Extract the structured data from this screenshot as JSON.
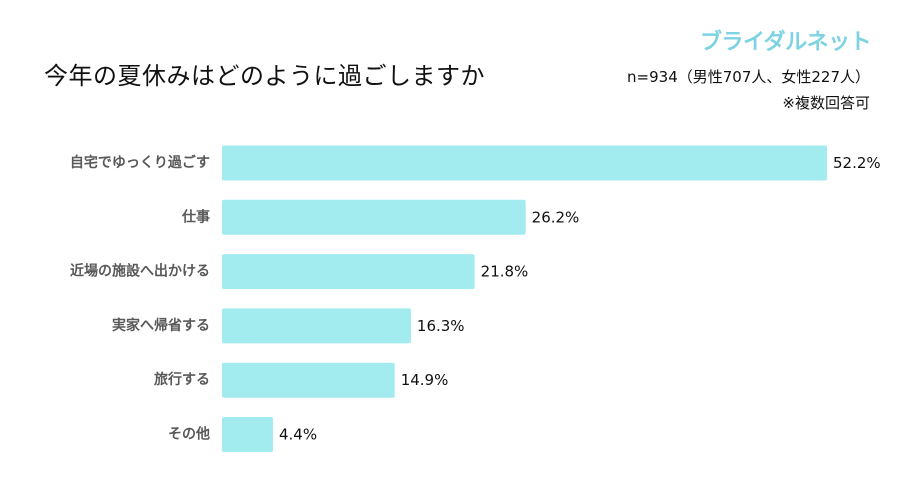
{
  "header": {
    "title": "今年の夏休みはどのように過ごしますか",
    "brand": "ブライダルネット",
    "sample": "n=934（男性707人、女性227人）",
    "note": "※複数回答可"
  },
  "chart_data": {
    "type": "bar",
    "orientation": "horizontal",
    "categories": [
      "自宅でゆっくり過ごす",
      "仕事",
      "近場の施設へ出かける",
      "実家へ帰省する",
      "旅行する",
      "その他"
    ],
    "values": [
      52.2,
      26.2,
      21.8,
      16.3,
      14.9,
      4.4
    ],
    "value_labels": [
      "52.2%",
      "26.2%",
      "21.8%",
      "16.3%",
      "14.9%",
      "4.4%"
    ],
    "unit": "%",
    "xlim": [
      0,
      52.2
    ],
    "grid": false,
    "bar_color": "#a2ecf0"
  }
}
